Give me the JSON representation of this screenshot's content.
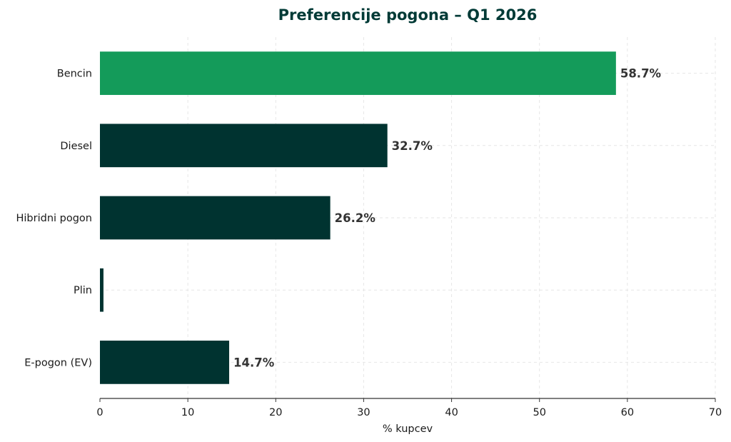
{
  "chart_data": {
    "type": "bar",
    "orientation": "horizontal",
    "title": "Preferencije pogona – Q1 2026",
    "xlabel": "% kupcev",
    "ylabel": "",
    "xlim": [
      0,
      70
    ],
    "xticks": [
      0,
      10,
      20,
      30,
      40,
      50,
      60,
      70
    ],
    "categories": [
      "Bencin",
      "Diesel",
      "Hibridni pogon",
      "Plin",
      "E-pogon (EV)"
    ],
    "values": [
      58.7,
      32.7,
      26.2,
      0.4,
      14.7
    ],
    "data_labels": [
      "58.7%",
      "32.7%",
      "26.2%",
      "",
      "14.7%"
    ],
    "colors": [
      "#149b5a",
      "#003330",
      "#003330",
      "#003330",
      "#003330"
    ],
    "title_color": "#003a36",
    "grid": true
  }
}
